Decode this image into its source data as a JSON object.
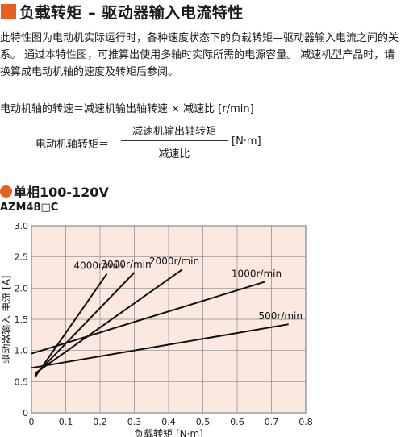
{
  "header": {
    "title": "负载转矩 – 驱动器输入电流特性"
  },
  "description": "此特性图为电动机实际运行时，各种速度状态下的负载转矩—驱动器输入电流之间的关系。 通过本特性图，可推算出使用多轴时实际所需的电源容量。 减速机型产品时，请换算成电动机轴的速度及转矩后参阅。",
  "formulas": {
    "speed": "电动机轴的转速＝减速机输出轴转速 × 减速比 [r/min]",
    "torque_left": "电动机轴转矩＝",
    "torque_numerator": "减速机输出轴转矩",
    "torque_denominator": "减速比",
    "torque_unit": "[N·m]"
  },
  "section": {
    "title": "单相100-120V",
    "model": "AZM48□C"
  },
  "colors": {
    "accent": "#e8601c",
    "plot_bg": "#fbe9e0",
    "line": "#111111"
  },
  "chart_data": {
    "type": "line",
    "title": "",
    "xlabel": "负载转矩 [N·m]",
    "ylabel": "驱动器输入 电流 [A]",
    "xlim": [
      0,
      0.8
    ],
    "ylim": [
      0,
      3.0
    ],
    "xticks": [
      "0",
      "0.1",
      "0.2",
      "0.3",
      "0.4",
      "0.5",
      "0.6",
      "0.7",
      "0.8"
    ],
    "yticks": [
      "0",
      "0.5",
      "1.0",
      "1.5",
      "2.0",
      "2.5",
      "3.0"
    ],
    "grid": true,
    "series": [
      {
        "name": "4000r/min",
        "x": [
          0.01,
          0.22
        ],
        "y": [
          0.57,
          2.23
        ]
      },
      {
        "name": "3000r/min",
        "x": [
          0.01,
          0.3
        ],
        "y": [
          0.6,
          2.25
        ]
      },
      {
        "name": "2000r/min",
        "x": [
          0.01,
          0.44
        ],
        "y": [
          0.63,
          2.3
        ]
      },
      {
        "name": "1000r/min",
        "x": [
          0.0,
          0.68
        ],
        "y": [
          0.95,
          2.1
        ]
      },
      {
        "name": "500r/min",
        "x": [
          0.0,
          0.75
        ],
        "y": [
          0.72,
          1.42
        ]
      }
    ]
  }
}
